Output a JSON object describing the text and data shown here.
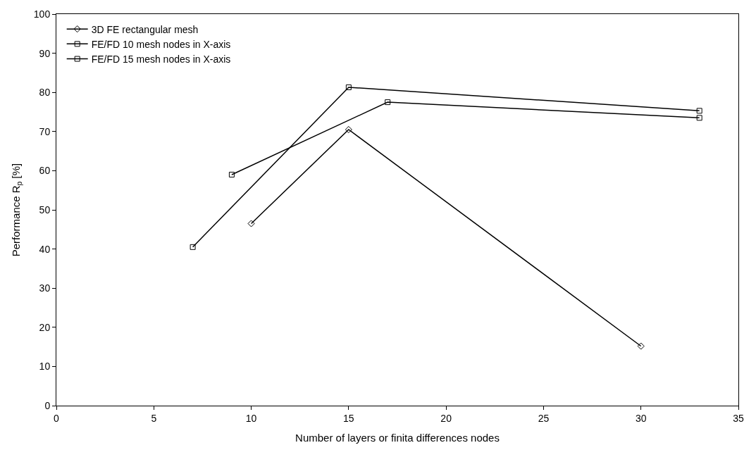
{
  "chart_data": {
    "type": "line",
    "xlabel": "Number of layers or finita differences nodes",
    "ylabel": "Performance R$_{p}$ [%]",
    "xlim": [
      0,
      35
    ],
    "xticks": [
      0,
      5,
      10,
      15,
      20,
      25,
      30,
      35
    ],
    "ylim": [
      0,
      100
    ],
    "yticks": [
      0,
      10,
      20,
      30,
      40,
      50,
      60,
      70,
      80,
      90,
      100
    ],
    "legend": "top left",
    "series": [
      {
        "name": "3D FE rectangular mesh",
        "color": "#000000",
        "marker": "diamond",
        "x": [
          10,
          15,
          30
        ],
        "values": [
          46.5,
          70.5,
          15.2
        ]
      },
      {
        "name": "FE/FD 10 mesh nodes in X-axis",
        "color": "#000000",
        "marker": "square",
        "x": [
          9,
          17,
          33
        ],
        "values": [
          59,
          77.5,
          73.5
        ]
      },
      {
        "name": "FE/FD 15 mesh nodes in X-axis",
        "color": "#000000",
        "marker": "square",
        "x": [
          7,
          15,
          33
        ],
        "values": [
          40.5,
          81.3,
          75.3
        ]
      }
    ]
  }
}
